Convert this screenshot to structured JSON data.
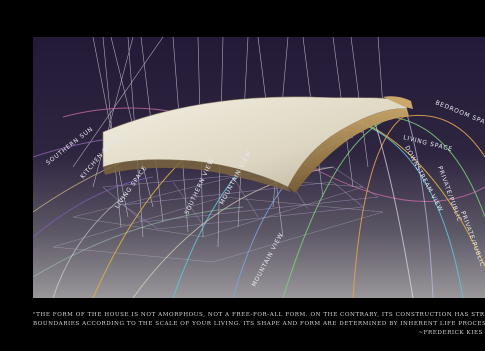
{
  "colors": {
    "background": "#000000",
    "panel_top": "#231a38",
    "panel_bottom": "#8d8a8f",
    "roof": "#e6e1d0"
  },
  "labels": {
    "bedroom_space": "BEDROOM SPACE",
    "living_space": "LIVING SPACE",
    "downstream_view": "DOWNSTREAM VIEW",
    "private_public": "PRIVATE/PUBLIC",
    "private_public_2": "PRIVATE/PUBLIC",
    "southern_sun": "SOUTHERN SUN",
    "kitchen_space": "KITCHEN SPACE",
    "living_space_2": "LIVING SPACE",
    "southern_view": "SOUTHERN VIEW",
    "mountain_view": "MOUNTAIN VIEW",
    "mountain_view_2": "MOUNTAIN VIEW"
  },
  "quote": {
    "line1": "\"The form of the house is not amorphous, not a free-for-all form.  On the contrary, its construction has strict",
    "line2": "boundaries according to the scale of your living.  Its shape and form are determined by inherent life processes.\"",
    "author": "~Frederick Kies"
  }
}
